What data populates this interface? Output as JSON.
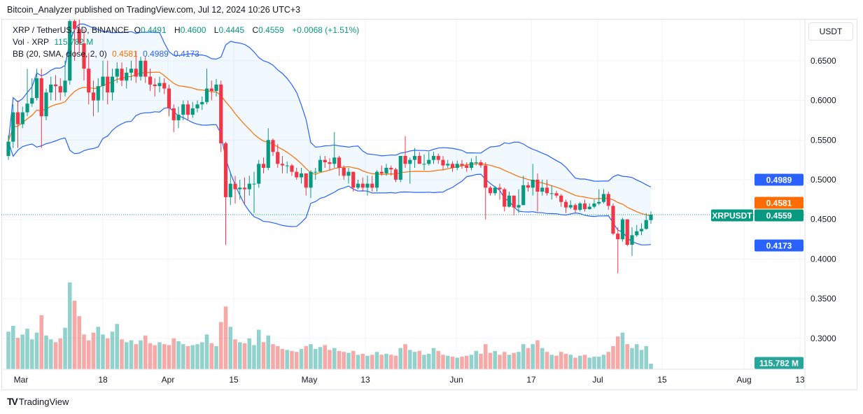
{
  "header": {
    "published": "Bitcoin_Analyzer published on TradingView.com, Jul 12, 2024 10:26 UTC+3"
  },
  "legend": {
    "symbol": "XRP / TetherUS, 1D, BINANCE",
    "o_label": "O",
    "o": "0.4491",
    "h_label": "H",
    "h": "0.4600",
    "l_label": "L",
    "l": "0.4445",
    "c_label": "C",
    "c": "0.4559",
    "change": "+0.0068 (+1.51%)",
    "vol_label": "Vol · XRP",
    "vol": "115.782 M",
    "bb_label": "BB (20, SMA, close, 2, 0)",
    "bb_basis": "0.4581",
    "bb_upper": "0.4989",
    "bb_lower": "0.4173"
  },
  "axis": {
    "currency_button": "USDT",
    "price_ticks": [
      "0.6500",
      "0.6000",
      "0.5500",
      "0.5000",
      "0.4500",
      "0.4000",
      "0.3500",
      "0.3000"
    ],
    "date_ticks": [
      "Mar",
      "18",
      "Apr",
      "15",
      "May",
      "13",
      "Jun",
      "17",
      "Jul",
      "15",
      "Aug",
      "13"
    ],
    "tags": {
      "upper": "0.4989",
      "basis": "0.4581",
      "symbol": "XRPUSDT",
      "last": "0.4559",
      "lower": "0.4173",
      "volume": "115.782 M"
    }
  },
  "colors": {
    "up": "#089981",
    "down": "#f23645",
    "bb_band": "#2962ff",
    "bb_basis": "#ff6d00",
    "fill": "#2196f3"
  },
  "footer": {
    "brand": "TradingView"
  },
  "chart_data": {
    "type": "candlestick",
    "first_date": "2024-02-27",
    "interval": "1D",
    "ylim": [
      0.28,
      0.74
    ],
    "first_open": 0.53,
    "close": [
      0.548,
      0.585,
      0.57,
      0.585,
      0.596,
      0.603,
      0.628,
      0.58,
      0.61,
      0.62,
      0.618,
      0.61,
      0.625,
      0.7,
      0.69,
      0.672,
      0.64,
      0.61,
      0.6,
      0.618,
      0.63,
      0.61,
      0.63,
      0.64,
      0.625,
      0.635,
      0.64,
      0.63,
      0.65,
      0.63,
      0.62,
      0.618,
      0.622,
      0.615,
      0.59,
      0.575,
      0.582,
      0.595,
      0.582,
      0.59,
      0.595,
      0.598,
      0.615,
      0.612,
      0.62,
      0.546,
      0.478,
      0.495,
      0.488,
      0.49,
      0.488,
      0.495,
      0.495,
      0.52,
      0.515,
      0.55,
      0.535,
      0.52,
      0.518,
      0.518,
      0.51,
      0.503,
      0.508,
      0.49,
      0.51,
      0.51,
      0.525,
      0.522,
      0.52,
      0.528,
      0.515,
      0.505,
      0.51,
      0.49,
      0.495,
      0.49,
      0.495,
      0.49,
      0.51,
      0.508,
      0.515,
      0.513,
      0.5,
      0.53,
      0.52,
      0.525,
      0.53,
      0.52,
      0.52,
      0.525,
      0.53,
      0.525,
      0.518,
      0.52,
      0.515,
      0.52,
      0.518,
      0.515,
      0.522,
      0.522,
      0.518,
      0.49,
      0.483,
      0.49,
      0.488,
      0.466,
      0.48,
      0.465,
      0.468,
      0.493,
      0.49,
      0.5,
      0.485,
      0.49,
      0.483,
      0.483,
      0.48,
      0.472,
      0.465,
      0.468,
      0.462,
      0.47,
      0.463,
      0.466,
      0.47,
      0.472,
      0.482,
      0.467,
      0.432,
      0.425,
      0.45,
      0.418,
      0.43,
      0.435,
      0.438,
      0.4491,
      0.4559
    ],
    "high": [
      0.556,
      0.595,
      0.6,
      0.592,
      0.64,
      0.628,
      0.64,
      0.64,
      0.615,
      0.63,
      0.632,
      0.628,
      0.65,
      0.745,
      0.745,
      0.73,
      0.69,
      0.66,
      0.625,
      0.628,
      0.65,
      0.65,
      0.64,
      0.648,
      0.648,
      0.642,
      0.65,
      0.662,
      0.655,
      0.655,
      0.64,
      0.628,
      0.63,
      0.628,
      0.62,
      0.595,
      0.592,
      0.6,
      0.6,
      0.598,
      0.6,
      0.605,
      0.64,
      0.625,
      0.627,
      0.625,
      0.548,
      0.51,
      0.505,
      0.5,
      0.503,
      0.505,
      0.51,
      0.525,
      0.528,
      0.565,
      0.552,
      0.545,
      0.53,
      0.523,
      0.52,
      0.515,
      0.515,
      0.508,
      0.512,
      0.515,
      0.53,
      0.53,
      0.527,
      0.56,
      0.53,
      0.518,
      0.515,
      0.51,
      0.5,
      0.503,
      0.505,
      0.505,
      0.512,
      0.518,
      0.52,
      0.518,
      0.515,
      0.53,
      0.555,
      0.528,
      0.54,
      0.535,
      0.532,
      0.535,
      0.535,
      0.533,
      0.53,
      0.525,
      0.523,
      0.524,
      0.525,
      0.522,
      0.527,
      0.53,
      0.525,
      0.522,
      0.492,
      0.492,
      0.495,
      0.49,
      0.485,
      0.48,
      0.488,
      0.505,
      0.497,
      0.52,
      0.508,
      0.5,
      0.5,
      0.493,
      0.486,
      0.482,
      0.475,
      0.474,
      0.47,
      0.472,
      0.475,
      0.47,
      0.475,
      0.488,
      0.488,
      0.485,
      0.47,
      0.44,
      0.452,
      0.45,
      0.44,
      0.443,
      0.445,
      0.458,
      0.46
    ],
    "low": [
      0.525,
      0.54,
      0.54,
      0.565,
      0.58,
      0.592,
      0.6,
      0.54,
      0.575,
      0.6,
      0.6,
      0.6,
      0.605,
      0.62,
      0.65,
      0.66,
      0.625,
      0.595,
      0.58,
      0.585,
      0.6,
      0.595,
      0.6,
      0.622,
      0.618,
      0.615,
      0.625,
      0.622,
      0.625,
      0.622,
      0.612,
      0.605,
      0.61,
      0.608,
      0.58,
      0.56,
      0.565,
      0.575,
      0.575,
      0.578,
      0.585,
      0.588,
      0.595,
      0.6,
      0.605,
      0.535,
      0.418,
      0.468,
      0.47,
      0.475,
      0.47,
      0.48,
      0.458,
      0.49,
      0.508,
      0.512,
      0.53,
      0.515,
      0.508,
      0.508,
      0.505,
      0.5,
      0.495,
      0.48,
      0.477,
      0.5,
      0.51,
      0.515,
      0.512,
      0.515,
      0.505,
      0.5,
      0.495,
      0.485,
      0.488,
      0.485,
      0.48,
      0.485,
      0.485,
      0.505,
      0.505,
      0.505,
      0.497,
      0.497,
      0.515,
      0.495,
      0.515,
      0.52,
      0.512,
      0.518,
      0.52,
      0.52,
      0.512,
      0.515,
      0.51,
      0.512,
      0.514,
      0.51,
      0.512,
      0.518,
      0.515,
      0.45,
      0.48,
      0.48,
      0.475,
      0.46,
      0.465,
      0.455,
      0.458,
      0.468,
      0.485,
      0.48,
      0.46,
      0.48,
      0.48,
      0.475,
      0.477,
      0.466,
      0.458,
      0.463,
      0.458,
      0.46,
      0.46,
      0.462,
      0.464,
      0.468,
      0.47,
      0.462,
      0.43,
      0.382,
      0.422,
      0.416,
      0.404,
      0.428,
      0.43,
      0.437,
      0.4445
    ],
    "volume": [
      780,
      900,
      650,
      720,
      840,
      620,
      760,
      1120,
      700,
      620,
      560,
      640,
      860,
      1800,
      1420,
      1100,
      720,
      600,
      760,
      880,
      720,
      640,
      780,
      940,
      620,
      560,
      600,
      520,
      600,
      700,
      540,
      500,
      560,
      520,
      500,
      640,
      580,
      520,
      480,
      500,
      520,
      560,
      720,
      540,
      480,
      980,
      1300,
      880,
      620,
      560,
      540,
      640,
      500,
      820,
      560,
      700,
      520,
      480,
      420,
      400,
      380,
      360,
      420,
      480,
      520,
      420,
      460,
      500,
      400,
      440,
      380,
      360,
      340,
      380,
      300,
      320,
      280,
      300,
      360,
      300,
      320,
      300,
      280,
      440,
      520,
      400,
      360,
      380,
      300,
      320,
      440,
      380,
      300,
      280,
      260,
      240,
      260,
      280,
      300,
      380,
      320,
      520,
      340,
      380,
      300,
      360,
      300,
      340,
      360,
      520,
      440,
      520,
      600,
      440,
      360,
      300,
      280,
      360,
      320,
      300,
      240,
      280,
      300,
      240,
      260,
      260,
      300,
      360,
      480,
      680,
      760,
      520,
      440,
      520,
      400,
      480,
      115.782
    ]
  }
}
